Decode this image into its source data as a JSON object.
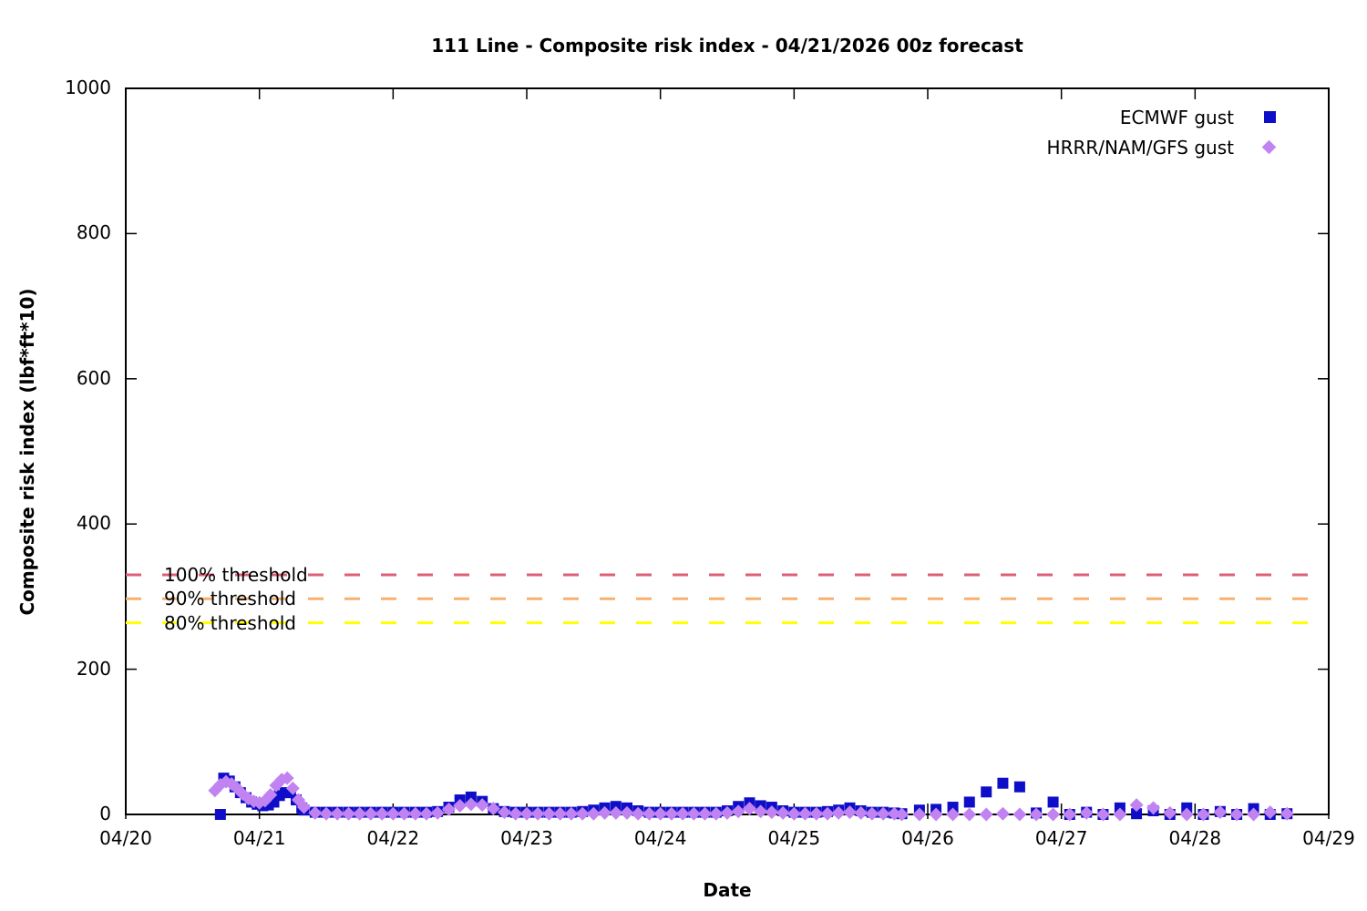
{
  "figure": {
    "title": "111 Line - Composite risk index - 04/21/2026 00z forecast",
    "xlabel": "Date",
    "ylabel": "Composite risk index (lbf*ft*10)"
  },
  "chart_data": {
    "type": "scatter",
    "title": "111 Line - Composite risk index - 04/21/2026 00z forecast",
    "xlabel": "Date",
    "ylabel": "Composite risk index (lbf*ft*10)",
    "x_axis": {
      "tick_labels": [
        "04/20",
        "04/21",
        "04/22",
        "04/23",
        "04/24",
        "04/25",
        "04/26",
        "04/27",
        "04/28",
        "04/29"
      ],
      "range_days": [
        0,
        9
      ],
      "unit": "days after 04/20"
    },
    "y_axis": {
      "ticks": [
        0,
        200,
        400,
        600,
        800,
        1000
      ],
      "range": [
        0,
        1000
      ]
    },
    "grid": false,
    "legend_position": "top-right-inside",
    "thresholds": [
      {
        "label": "100% threshold",
        "value": 330,
        "color": "#dd5f76"
      },
      {
        "label": "90% threshold",
        "value": 297,
        "color": "#f6b171"
      },
      {
        "label": "80% threshold",
        "value": 264,
        "color": "#ffff00"
      }
    ],
    "series": [
      {
        "name": "ECMWF gust",
        "marker": "square",
        "color": "#0e0ec8",
        "points": [
          [
            0.708,
            0
          ],
          [
            0.733,
            50
          ],
          [
            0.775,
            46
          ],
          [
            0.817,
            38
          ],
          [
            0.858,
            30
          ],
          [
            0.9,
            23
          ],
          [
            0.942,
            17
          ],
          [
            0.983,
            14
          ],
          [
            1.025,
            12
          ],
          [
            1.067,
            13
          ],
          [
            1.108,
            17
          ],
          [
            1.15,
            26
          ],
          [
            1.192,
            30
          ],
          [
            1.233,
            30
          ],
          [
            1.275,
            20
          ],
          [
            1.317,
            9
          ],
          [
            1.333,
            6
          ],
          [
            1.417,
            3
          ],
          [
            1.5,
            3
          ],
          [
            1.583,
            3
          ],
          [
            1.667,
            3
          ],
          [
            1.75,
            3
          ],
          [
            1.833,
            3
          ],
          [
            1.917,
            3
          ],
          [
            2.0,
            3
          ],
          [
            2.083,
            3
          ],
          [
            2.167,
            3
          ],
          [
            2.25,
            3
          ],
          [
            2.333,
            4
          ],
          [
            2.417,
            10
          ],
          [
            2.5,
            20
          ],
          [
            2.583,
            24
          ],
          [
            2.667,
            18
          ],
          [
            2.75,
            8
          ],
          [
            2.833,
            4
          ],
          [
            2.917,
            3
          ],
          [
            3.0,
            3
          ],
          [
            3.083,
            3
          ],
          [
            3.167,
            3
          ],
          [
            3.25,
            3
          ],
          [
            3.333,
            3
          ],
          [
            3.417,
            4
          ],
          [
            3.5,
            6
          ],
          [
            3.583,
            9
          ],
          [
            3.667,
            11
          ],
          [
            3.75,
            9
          ],
          [
            3.833,
            5
          ],
          [
            3.917,
            3
          ],
          [
            4.0,
            3
          ],
          [
            4.083,
            3
          ],
          [
            4.167,
            3
          ],
          [
            4.25,
            3
          ],
          [
            4.333,
            3
          ],
          [
            4.417,
            3
          ],
          [
            4.5,
            5
          ],
          [
            4.583,
            11
          ],
          [
            4.667,
            16
          ],
          [
            4.75,
            12
          ],
          [
            4.833,
            10
          ],
          [
            4.917,
            5
          ],
          [
            5.0,
            3
          ],
          [
            5.083,
            3
          ],
          [
            5.167,
            3
          ],
          [
            5.25,
            4
          ],
          [
            5.333,
            6
          ],
          [
            5.417,
            9
          ],
          [
            5.5,
            5
          ],
          [
            5.583,
            3
          ],
          [
            5.667,
            3
          ],
          [
            5.75,
            2
          ],
          [
            5.806,
            1
          ],
          [
            5.938,
            6
          ],
          [
            6.062,
            7
          ],
          [
            6.188,
            10
          ],
          [
            6.312,
            17
          ],
          [
            6.438,
            31
          ],
          [
            6.562,
            43
          ],
          [
            6.688,
            38
          ],
          [
            6.812,
            2
          ],
          [
            6.938,
            17
          ],
          [
            7.062,
            0
          ],
          [
            7.188,
            3
          ],
          [
            7.312,
            0
          ],
          [
            7.438,
            9
          ],
          [
            7.562,
            1
          ],
          [
            7.688,
            5
          ],
          [
            7.812,
            0
          ],
          [
            7.938,
            9
          ],
          [
            8.062,
            0
          ],
          [
            8.188,
            4
          ],
          [
            8.312,
            0
          ],
          [
            8.438,
            8
          ],
          [
            8.562,
            0
          ],
          [
            8.688,
            1
          ]
        ]
      },
      {
        "name": "HRRR/NAM/GFS gust",
        "marker": "diamond",
        "color": "#c183f2",
        "points": [
          [
            0.667,
            33
          ],
          [
            0.708,
            41
          ],
          [
            0.75,
            45
          ],
          [
            0.792,
            42
          ],
          [
            0.833,
            36
          ],
          [
            0.875,
            28
          ],
          [
            0.917,
            22
          ],
          [
            0.958,
            18
          ],
          [
            1.0,
            16
          ],
          [
            1.042,
            19
          ],
          [
            1.083,
            27
          ],
          [
            1.125,
            40
          ],
          [
            1.167,
            48
          ],
          [
            1.208,
            50
          ],
          [
            1.25,
            36
          ],
          [
            1.292,
            20
          ],
          [
            1.333,
            10
          ],
          [
            1.417,
            2
          ],
          [
            1.5,
            1
          ],
          [
            1.583,
            1
          ],
          [
            1.667,
            1
          ],
          [
            1.75,
            1
          ],
          [
            1.833,
            1
          ],
          [
            1.917,
            1
          ],
          [
            2.0,
            1
          ],
          [
            2.083,
            1
          ],
          [
            2.167,
            1
          ],
          [
            2.25,
            1
          ],
          [
            2.333,
            2
          ],
          [
            2.417,
            7
          ],
          [
            2.5,
            12
          ],
          [
            2.583,
            14
          ],
          [
            2.667,
            13
          ],
          [
            2.75,
            8
          ],
          [
            2.833,
            3
          ],
          [
            2.917,
            1
          ],
          [
            3.0,
            1
          ],
          [
            3.083,
            1
          ],
          [
            3.167,
            1
          ],
          [
            3.25,
            1
          ],
          [
            3.333,
            1
          ],
          [
            3.417,
            1
          ],
          [
            3.5,
            1
          ],
          [
            3.583,
            2
          ],
          [
            3.667,
            2
          ],
          [
            3.75,
            2
          ],
          [
            3.833,
            1
          ],
          [
            3.917,
            1
          ],
          [
            4.0,
            1
          ],
          [
            4.083,
            1
          ],
          [
            4.167,
            1
          ],
          [
            4.25,
            1
          ],
          [
            4.333,
            1
          ],
          [
            4.417,
            1
          ],
          [
            4.5,
            2
          ],
          [
            4.583,
            4
          ],
          [
            4.667,
            8
          ],
          [
            4.75,
            4
          ],
          [
            4.833,
            3
          ],
          [
            4.917,
            2
          ],
          [
            5.0,
            1
          ],
          [
            5.083,
            1
          ],
          [
            5.167,
            1
          ],
          [
            5.25,
            1
          ],
          [
            5.333,
            2
          ],
          [
            5.417,
            3
          ],
          [
            5.5,
            2
          ],
          [
            5.583,
            1
          ],
          [
            5.667,
            1
          ],
          [
            5.75,
            1
          ],
          [
            5.806,
            0
          ],
          [
            5.938,
            0
          ],
          [
            6.062,
            0
          ],
          [
            6.188,
            0
          ],
          [
            6.312,
            0
          ],
          [
            6.438,
            0
          ],
          [
            6.562,
            1
          ],
          [
            6.688,
            0
          ],
          [
            6.812,
            0
          ],
          [
            6.938,
            0
          ],
          [
            7.062,
            0
          ],
          [
            7.188,
            2
          ],
          [
            7.312,
            0
          ],
          [
            7.438,
            0
          ],
          [
            7.562,
            13
          ],
          [
            7.688,
            9
          ],
          [
            7.812,
            2
          ],
          [
            7.938,
            0
          ],
          [
            8.062,
            0
          ],
          [
            8.188,
            3
          ],
          [
            8.312,
            0
          ],
          [
            8.438,
            0
          ],
          [
            8.562,
            3
          ],
          [
            8.688,
            1
          ]
        ]
      }
    ]
  }
}
